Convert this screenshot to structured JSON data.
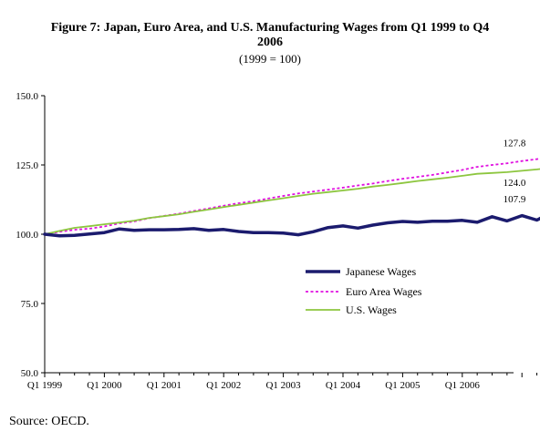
{
  "title_line1": "Figure 7: Japan, Euro Area, and U.S. Manufacturing Wages from Q1 1999 to Q4",
  "title_line2": "2006",
  "subtitle": "(1999 = 100)",
  "source": "Source: OECD.",
  "chart_data": {
    "type": "line",
    "title": "Figure 7: Japan, Euro Area, and U.S. Manufacturing Wages from Q1 1999 to Q4 2006",
    "subtitle": "(1999 = 100)",
    "xlabel": "",
    "ylabel": "",
    "ylim": [
      50,
      150
    ],
    "yticks": [
      "50.0",
      "75.0",
      "100.0",
      "125.0",
      "150.0"
    ],
    "xtick_labels": [
      "Q1 1999",
      "Q1 2000",
      "Q1 2001",
      "Q1 2002",
      "Q1 2003",
      "Q1 2004",
      "Q1 2005",
      "Q1 2006"
    ],
    "quarters_per_tick": 4,
    "grid": false,
    "legend_position": "center-right",
    "series": [
      {
        "name": "Japanese Wages",
        "color": "#1b1b6e",
        "style": "solid-thick",
        "end_label": "107.9",
        "values": [
          100.0,
          99.4,
          99.6,
          100.1,
          100.6,
          101.9,
          101.4,
          101.6,
          101.6,
          101.7,
          102.0,
          101.4,
          101.7,
          101.0,
          100.6,
          100.6,
          100.4,
          99.8,
          100.9,
          102.4,
          103.0,
          102.2,
          103.3,
          104.1,
          104.6,
          104.3,
          104.7,
          104.7,
          105.0,
          104.3,
          106.3,
          104.8,
          106.7,
          105.1,
          107.9
        ]
      },
      {
        "name": "Euro Area Wages",
        "color": "#e010e0",
        "style": "dotted",
        "end_label": "127.8",
        "values": [
          100.0,
          100.9,
          101.6,
          102.0,
          102.8,
          103.9,
          104.6,
          105.8,
          106.6,
          107.4,
          108.4,
          109.3,
          110.3,
          111.2,
          111.9,
          112.9,
          113.8,
          114.7,
          115.4,
          116.1,
          116.8,
          117.6,
          118.3,
          119.2,
          120.0,
          120.7,
          121.4,
          122.3,
          123.2,
          124.3,
          125.0,
          125.6,
          126.4,
          127.1,
          127.8
        ]
      },
      {
        "name": "U.S. Wages",
        "color": "#8dc63f",
        "style": "solid",
        "end_label": "124.0",
        "values": [
          100.0,
          101.2,
          102.3,
          102.9,
          103.6,
          104.2,
          104.9,
          105.9,
          106.5,
          107.2,
          108.1,
          108.9,
          109.8,
          110.6,
          111.4,
          112.2,
          113.0,
          113.8,
          114.6,
          115.2,
          115.8,
          116.4,
          117.2,
          117.8,
          118.5,
          119.2,
          119.8,
          120.4,
          121.1,
          121.8,
          122.1,
          122.4,
          122.9,
          123.4,
          124.0
        ]
      }
    ]
  }
}
